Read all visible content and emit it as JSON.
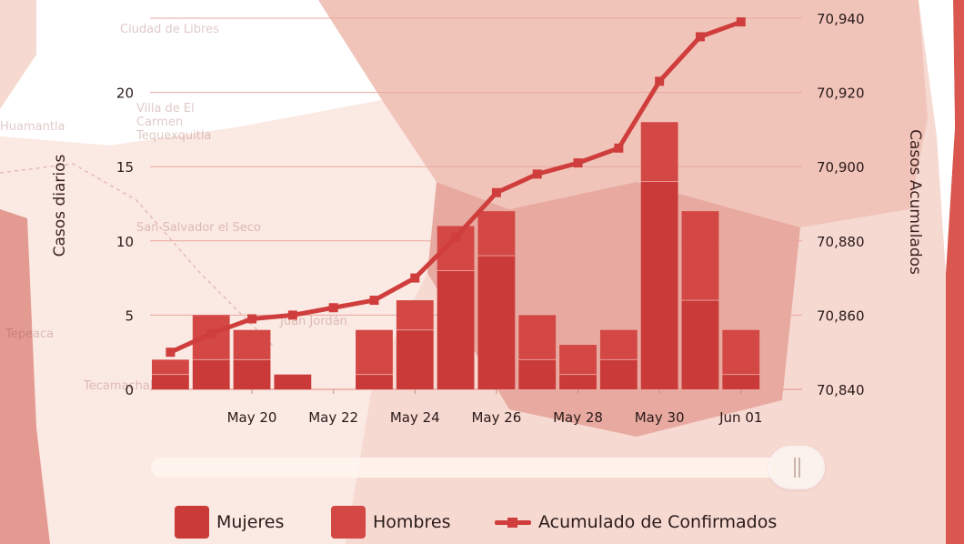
{
  "map": {
    "labels": [
      "Ciudad de Libres",
      "Villa de El Carmen Tequexquitla",
      "San Salvador el Seco",
      "Juan Jordán",
      "Huamantla",
      "Tepeaca",
      "Tecamachalco"
    ]
  },
  "colors": {
    "women": "#c93a38",
    "men": "#d34744",
    "cumulative_line": "#cf3e3c",
    "gridline": "#e8a79f"
  },
  "slider": {
    "position": 1.0
  },
  "chart_data": {
    "type": "bar",
    "x_ticks": [
      "May 20",
      "May 22",
      "May 24",
      "May 26",
      "May 28",
      "May 30",
      "Jun 01"
    ],
    "categories": [
      "2020-05-18",
      "2020-05-19",
      "2020-05-20",
      "2020-05-21",
      "2020-05-22",
      "2020-05-23",
      "2020-05-24",
      "2020-05-25",
      "2020-05-26",
      "2020-05-27",
      "2020-05-28",
      "2020-05-29",
      "2020-05-30",
      "2020-05-31",
      "2020-06-01",
      "2020-06-02"
    ],
    "stacked": true,
    "series": [
      {
        "name": "Mujeres",
        "type": "bar",
        "axis": "left",
        "values": [
          1,
          2,
          2,
          1,
          null,
          1,
          4,
          8,
          9,
          2,
          1,
          2,
          14,
          6,
          1,
          null
        ]
      },
      {
        "name": "Hombres",
        "type": "bar",
        "axis": "left",
        "values": [
          1,
          3,
          2,
          0,
          null,
          3,
          2,
          3,
          3,
          3,
          2,
          2,
          4,
          6,
          3,
          null
        ]
      },
      {
        "name": "Acumulado de Confirmados",
        "type": "line",
        "axis": "right",
        "values": [
          70850,
          70855,
          70859,
          70860,
          70862,
          70864,
          70870,
          70881,
          70893,
          70898,
          70901,
          70905,
          70923,
          70935,
          70939,
          null
        ]
      }
    ],
    "y_left": {
      "label": "Casos diarios",
      "ticks": [
        "0",
        "5",
        "10",
        "15",
        "20"
      ],
      "range": [
        0,
        25
      ]
    },
    "y_right": {
      "label": "Casos Acumulados",
      "ticks": [
        "70,840",
        "70,860",
        "70,880",
        "70,900",
        "70,920",
        "70,940"
      ],
      "range": [
        70840,
        70940
      ]
    },
    "legend": {
      "position": "bottom",
      "entries": [
        "Mujeres",
        "Hombres",
        "Acumulado de Confirmados"
      ]
    },
    "grid": true
  }
}
